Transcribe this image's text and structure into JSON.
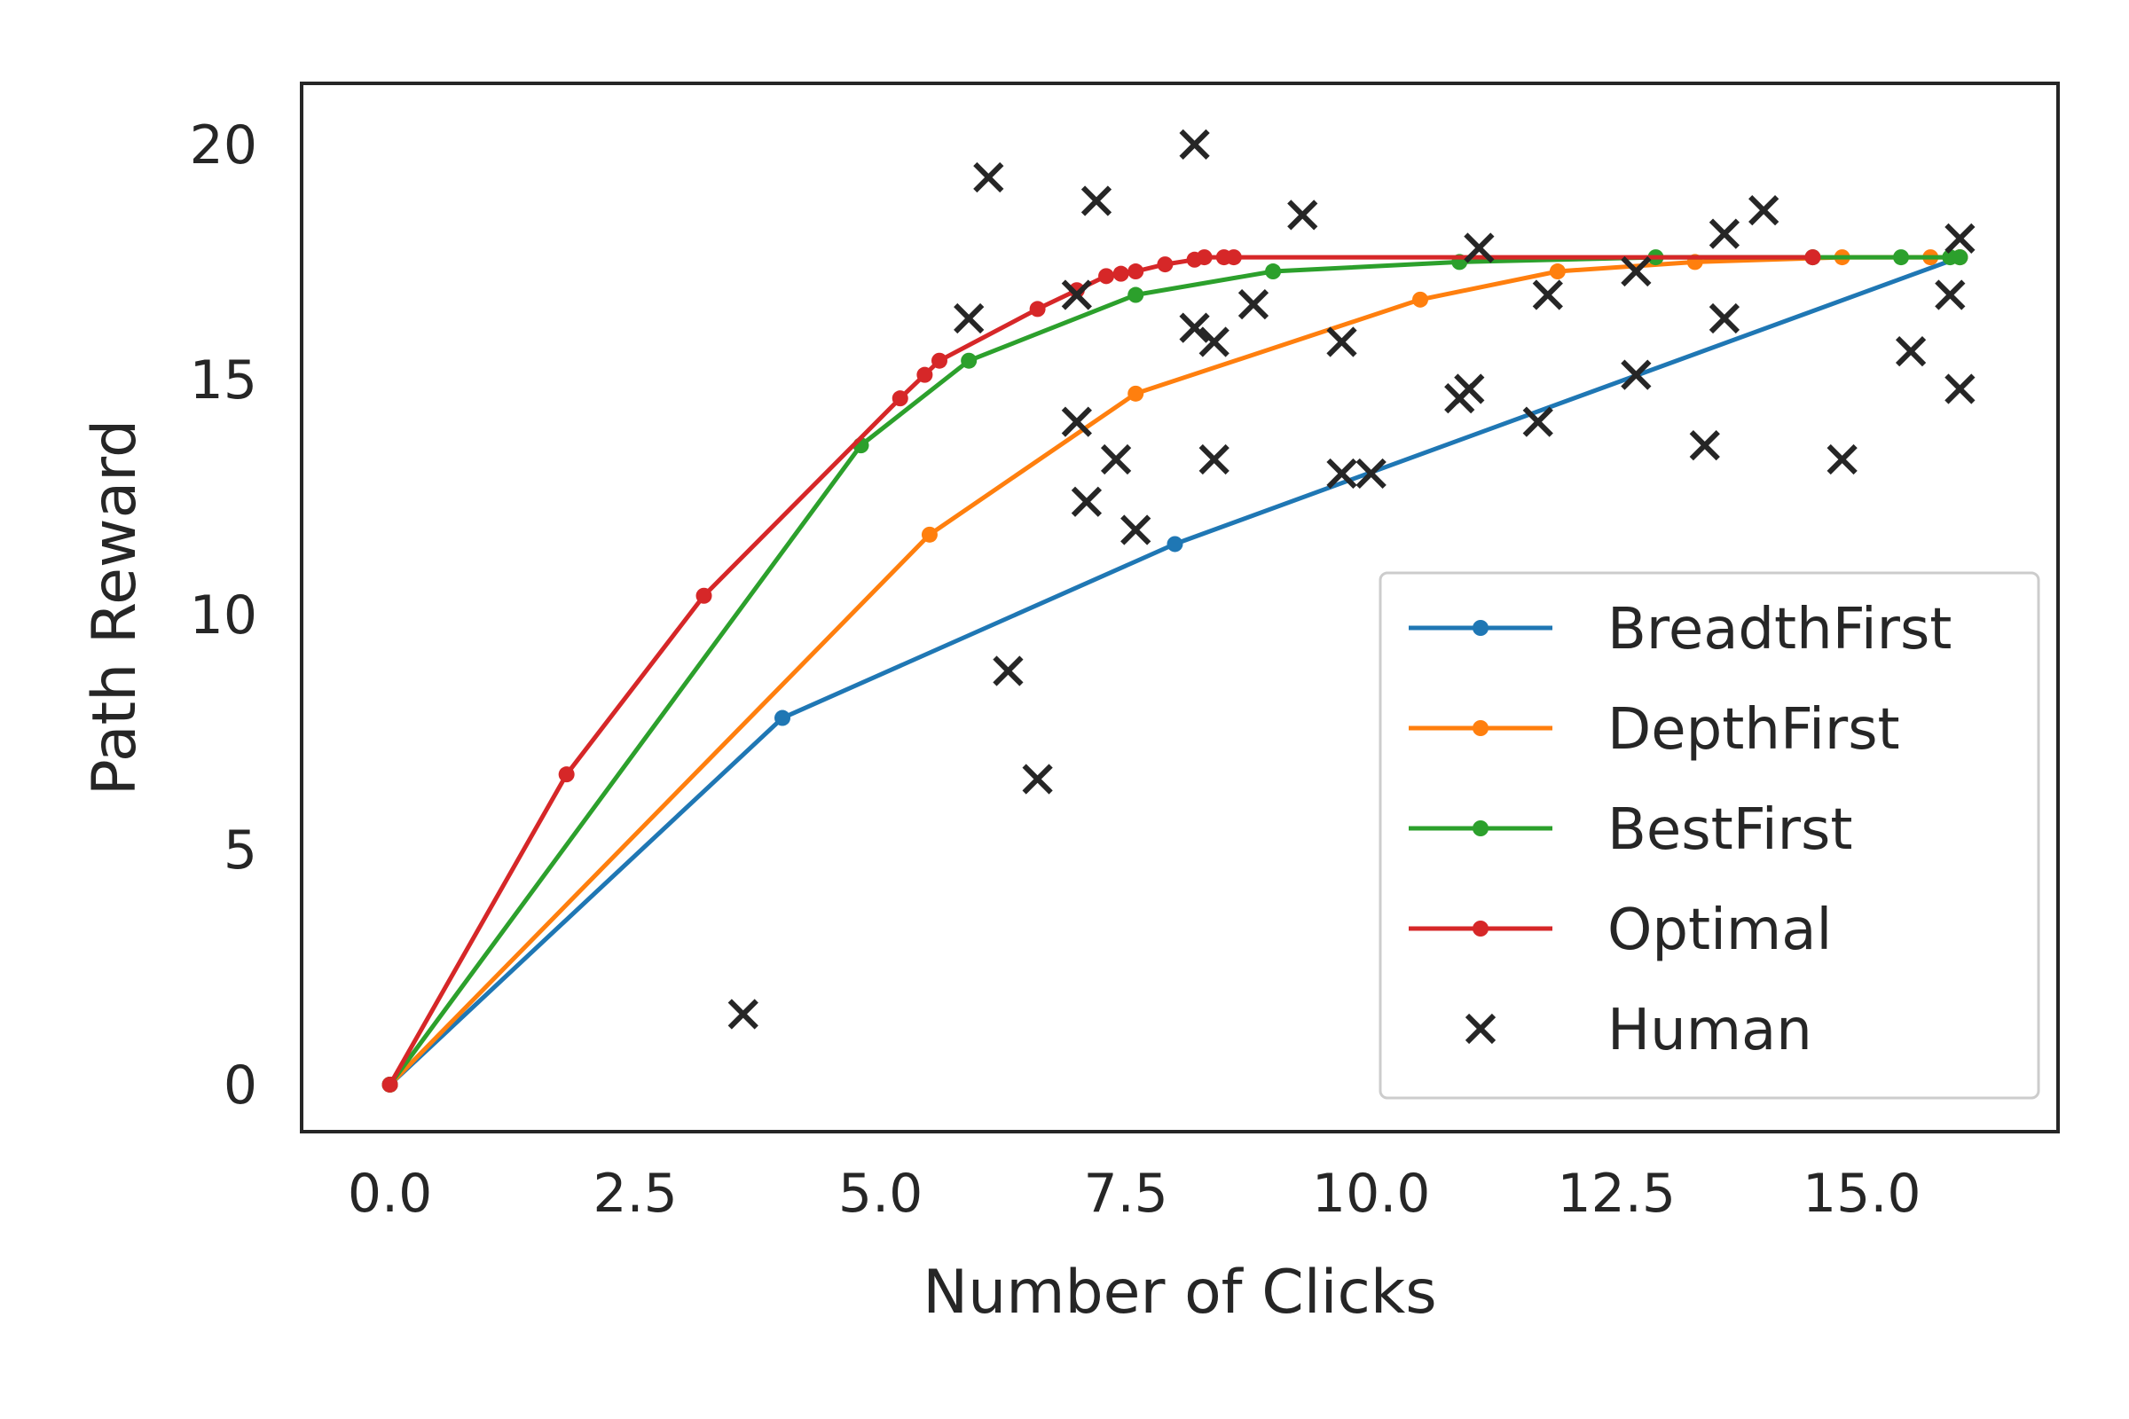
{
  "chart_data": {
    "type": "line",
    "xlabel": "Number of Clicks",
    "ylabel": "Path Reward",
    "xlim": [
      -0.9,
      17.0
    ],
    "ylim": [
      -1.0,
      21.3
    ],
    "xticks": [
      0.0,
      2.5,
      5.0,
      7.5,
      10.0,
      12.5,
      15.0
    ],
    "xtick_labels": [
      "0.0",
      "2.5",
      "5.0",
      "7.5",
      "10.0",
      "12.5",
      "15.0"
    ],
    "yticks": [
      0,
      5,
      10,
      15,
      20
    ],
    "ytick_labels": [
      "0",
      "5",
      "10",
      "15",
      "20"
    ],
    "grid": false,
    "legend_position": "bottom-right",
    "series": [
      {
        "name": "BreadthFirst",
        "color": "#1f77b4",
        "style": "line-marker",
        "points": [
          [
            0,
            0
          ],
          [
            4,
            7.8
          ],
          [
            8,
            11.5
          ],
          [
            16,
            17.6
          ]
        ]
      },
      {
        "name": "DepthFirst",
        "color": "#ff7f0e",
        "style": "line-marker",
        "points": [
          [
            0,
            0
          ],
          [
            5.5,
            11.7
          ],
          [
            7.6,
            14.7
          ],
          [
            10.5,
            16.7
          ],
          [
            11.9,
            17.3
          ],
          [
            13.3,
            17.5
          ],
          [
            14.8,
            17.6
          ],
          [
            15.7,
            17.6
          ],
          [
            16,
            17.6
          ]
        ]
      },
      {
        "name": "BestFirst",
        "color": "#2ca02c",
        "style": "line-marker",
        "points": [
          [
            0,
            0
          ],
          [
            4.8,
            13.6
          ],
          [
            5.9,
            15.4
          ],
          [
            7.6,
            16.8
          ],
          [
            9,
            17.3
          ],
          [
            10.9,
            17.5
          ],
          [
            12.9,
            17.6
          ],
          [
            14.5,
            17.6
          ],
          [
            15.4,
            17.6
          ],
          [
            15.9,
            17.6
          ],
          [
            16,
            17.6
          ]
        ]
      },
      {
        "name": "Optimal",
        "color": "#d62728",
        "style": "line-marker",
        "points": [
          [
            0,
            0
          ],
          [
            1.8,
            6.6
          ],
          [
            3.2,
            10.4
          ],
          [
            5.2,
            14.6
          ],
          [
            5.45,
            15.1
          ],
          [
            5.6,
            15.4
          ],
          [
            6.6,
            16.5
          ],
          [
            7.0,
            16.9
          ],
          [
            7.3,
            17.2
          ],
          [
            7.45,
            17.25
          ],
          [
            7.6,
            17.3
          ],
          [
            7.9,
            17.45
          ],
          [
            8.2,
            17.55
          ],
          [
            8.3,
            17.6
          ],
          [
            8.5,
            17.6
          ],
          [
            8.6,
            17.6
          ],
          [
            14.5,
            17.6
          ]
        ]
      },
      {
        "name": "Human",
        "color": "#262626",
        "style": "x-marker",
        "points": [
          [
            3.6,
            1.5
          ],
          [
            6.1,
            19.3
          ],
          [
            5.9,
            16.3
          ],
          [
            6.3,
            8.8
          ],
          [
            6.6,
            6.5
          ],
          [
            7.0,
            16.8
          ],
          [
            7.0,
            14.1
          ],
          [
            7.1,
            12.4
          ],
          [
            7.2,
            18.8
          ],
          [
            7.4,
            13.3
          ],
          [
            7.6,
            11.8
          ],
          [
            8.2,
            20.0
          ],
          [
            8.2,
            16.1
          ],
          [
            8.4,
            15.8
          ],
          [
            8.4,
            13.3
          ],
          [
            8.8,
            16.6
          ],
          [
            9.3,
            18.5
          ],
          [
            9.7,
            15.8
          ],
          [
            9.7,
            13.0
          ],
          [
            10.0,
            13.0
          ],
          [
            10.9,
            14.6
          ],
          [
            11.0,
            14.8
          ],
          [
            11.1,
            17.8
          ],
          [
            11.7,
            14.1
          ],
          [
            11.8,
            16.8
          ],
          [
            12.7,
            17.3
          ],
          [
            12.7,
            15.1
          ],
          [
            13.4,
            13.6
          ],
          [
            13.6,
            18.1
          ],
          [
            13.6,
            16.3
          ],
          [
            14.0,
            18.6
          ],
          [
            14.8,
            13.3
          ],
          [
            15.5,
            15.6
          ],
          [
            15.9,
            16.8
          ],
          [
            16.0,
            18.0
          ],
          [
            16.0,
            14.8
          ]
        ]
      }
    ]
  }
}
